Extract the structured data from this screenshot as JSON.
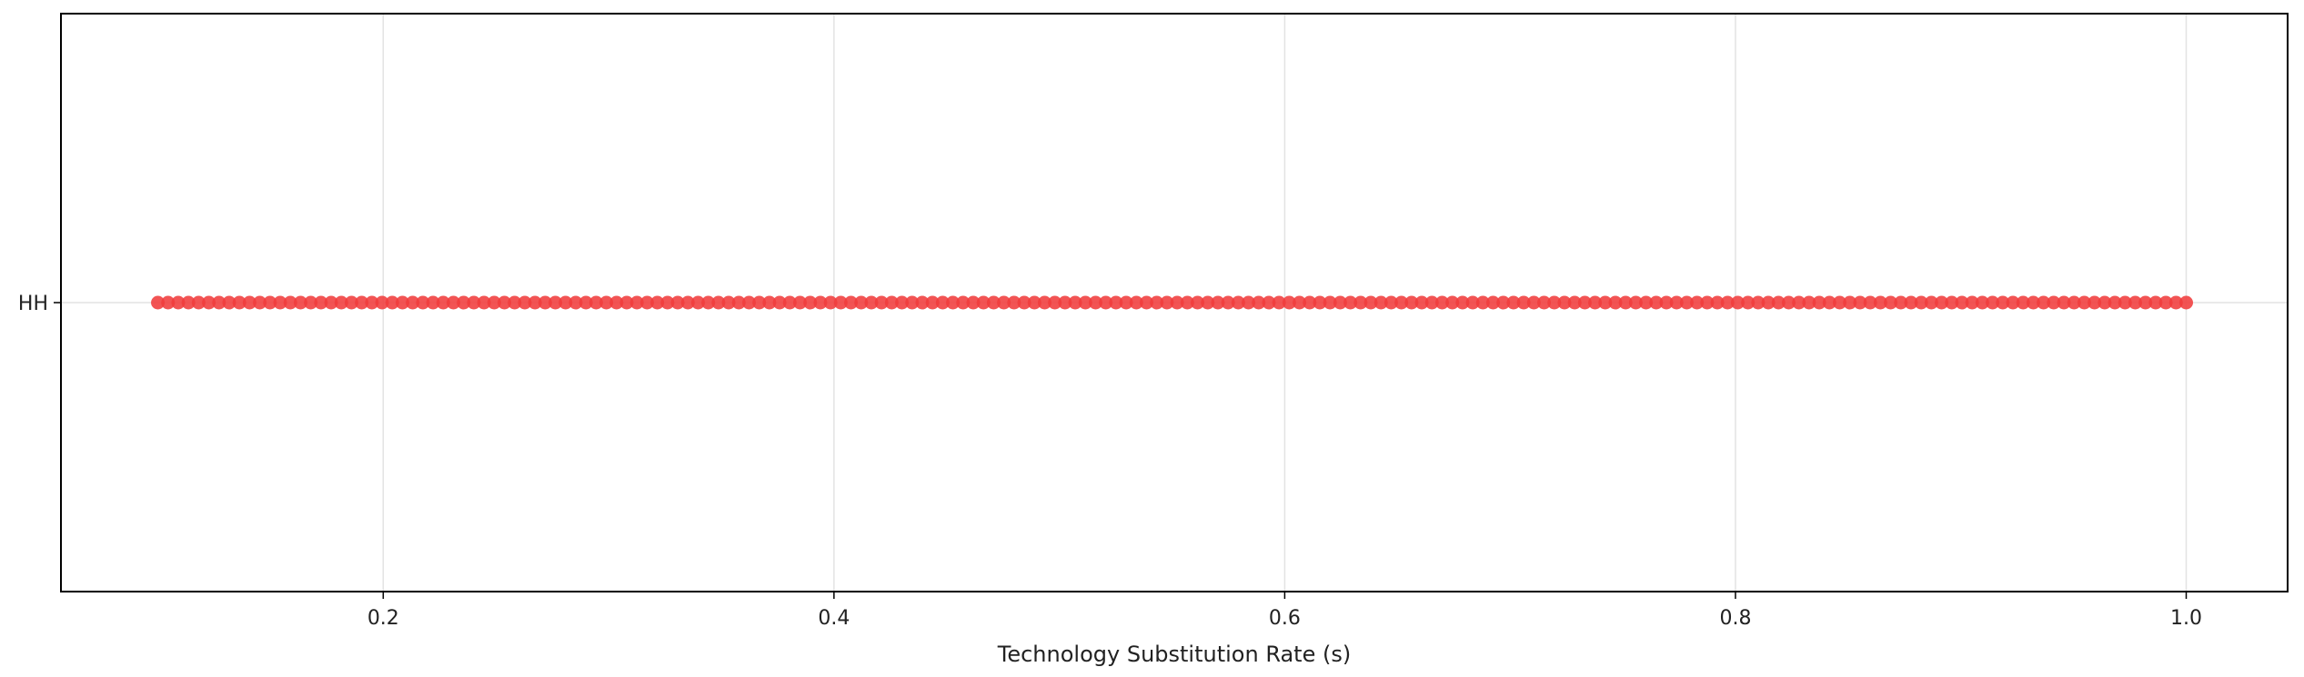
{
  "chart_data": {
    "type": "scatter",
    "title": "",
    "xlabel": "Technology Substitution Rate (s)",
    "ylabel": "",
    "xlim": [
      0.057,
      1.045
    ],
    "x_ticks": [
      0.2,
      0.4,
      0.6,
      0.8,
      1.0
    ],
    "x_tick_labels": [
      "0.2",
      "0.4",
      "0.6",
      "0.8",
      "1.0"
    ],
    "categories": [
      "HH"
    ],
    "grid": true,
    "legend": "none",
    "series": [
      {
        "category": "HH",
        "color": "#f03c3c",
        "x_start": 0.1,
        "x_end": 1.0,
        "count": 200
      }
    ]
  }
}
